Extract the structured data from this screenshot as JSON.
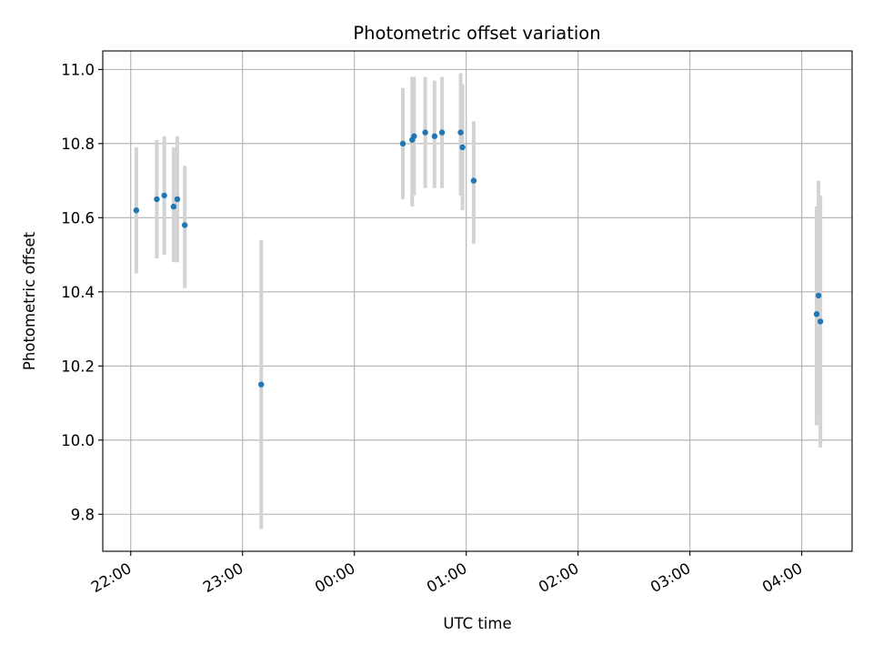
{
  "chart_data": {
    "type": "scatter",
    "title": "Photometric offset variation",
    "xlabel": "UTC time",
    "ylabel": "Photometric offset",
    "x_axis": {
      "kind": "time",
      "range": [
        "21:45",
        "04:27"
      ],
      "ticks": [
        "22:00",
        "23:00",
        "00:00",
        "01:00",
        "02:00",
        "03:00",
        "04:00"
      ],
      "tick_label_rotation": "30deg"
    },
    "y_axis": {
      "range": [
        9.7,
        11.05
      ],
      "ticks": [
        "9.8",
        "10.0",
        "10.2",
        "10.4",
        "10.6",
        "10.8",
        "11.0"
      ]
    },
    "grid": true,
    "colors": {
      "point": "#1f77b4",
      "errorbar": "#d3d3d3"
    },
    "points": [
      {
        "x": "22:03",
        "y": 10.62,
        "ylow": 10.45,
        "yhigh": 10.79
      },
      {
        "x": "22:14",
        "y": 10.65,
        "ylow": 10.49,
        "yhigh": 10.81
      },
      {
        "x": "22:18",
        "y": 10.66,
        "ylow": 10.5,
        "yhigh": 10.82
      },
      {
        "x": "22:23",
        "y": 10.63,
        "ylow": 10.48,
        "yhigh": 10.79
      },
      {
        "x": "22:25",
        "y": 10.65,
        "ylow": 10.48,
        "yhigh": 10.82
      },
      {
        "x": "22:29",
        "y": 10.58,
        "ylow": 10.41,
        "yhigh": 10.74
      },
      {
        "x": "23:10",
        "y": 10.15,
        "ylow": 9.76,
        "yhigh": 10.54
      },
      {
        "x": "00:26",
        "y": 10.8,
        "ylow": 10.65,
        "yhigh": 10.95
      },
      {
        "x": "00:31",
        "y": 10.81,
        "ylow": 10.63,
        "yhigh": 10.98
      },
      {
        "x": "00:32",
        "y": 10.82,
        "ylow": 10.66,
        "yhigh": 10.98
      },
      {
        "x": "00:38",
        "y": 10.83,
        "ylow": 10.68,
        "yhigh": 10.98
      },
      {
        "x": "00:43",
        "y": 10.82,
        "ylow": 10.68,
        "yhigh": 10.97
      },
      {
        "x": "00:47",
        "y": 10.83,
        "ylow": 10.68,
        "yhigh": 10.98
      },
      {
        "x": "00:57",
        "y": 10.83,
        "ylow": 10.66,
        "yhigh": 10.99
      },
      {
        "x": "00:58",
        "y": 10.79,
        "ylow": 10.62,
        "yhigh": 10.96
      },
      {
        "x": "01:04",
        "y": 10.7,
        "ylow": 10.53,
        "yhigh": 10.86
      },
      {
        "x": "04:08",
        "y": 10.34,
        "ylow": 10.04,
        "yhigh": 10.63
      },
      {
        "x": "04:09",
        "y": 10.39,
        "ylow": 10.08,
        "yhigh": 10.7
      },
      {
        "x": "04:10",
        "y": 10.32,
        "ylow": 9.98,
        "yhigh": 10.66
      }
    ]
  }
}
